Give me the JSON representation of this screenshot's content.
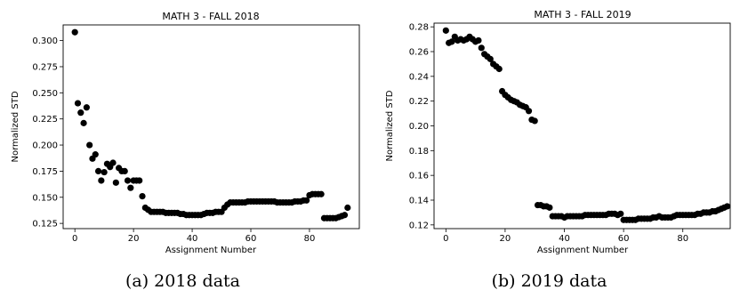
{
  "captions": [
    "(a) 2018 data",
    "(b) 2019 data"
  ],
  "chart_data": [
    {
      "type": "scatter",
      "title": "MATH 3 - FALL 2018",
      "xlabel": "Assignment Number",
      "ylabel": "Normalized STD",
      "xlim": [
        -4,
        97
      ],
      "ylim": [
        0.12,
        0.315
      ],
      "xticks": [
        0,
        20,
        40,
        60,
        80
      ],
      "yticks": [
        0.125,
        0.15,
        0.175,
        0.2,
        0.225,
        0.25,
        0.275,
        0.3
      ],
      "ytick_decimals": 3,
      "grid": false,
      "marker_color": "#000000",
      "points": [
        [
          0,
          0.308
        ],
        [
          1,
          0.24
        ],
        [
          2,
          0.231
        ],
        [
          3,
          0.221
        ],
        [
          4,
          0.236
        ],
        [
          5,
          0.2
        ],
        [
          6,
          0.187
        ],
        [
          7,
          0.191
        ],
        [
          8,
          0.175
        ],
        [
          9,
          0.166
        ],
        [
          10,
          0.174
        ],
        [
          11,
          0.182
        ],
        [
          12,
          0.179
        ],
        [
          13,
          0.183
        ],
        [
          14,
          0.164
        ],
        [
          15,
          0.178
        ],
        [
          16,
          0.175
        ],
        [
          17,
          0.175
        ],
        [
          18,
          0.166
        ],
        [
          19,
          0.159
        ],
        [
          20,
          0.166
        ],
        [
          21,
          0.166
        ],
        [
          22,
          0.166
        ],
        [
          23,
          0.151
        ],
        [
          24,
          0.14
        ],
        [
          25,
          0.138
        ],
        [
          26,
          0.136
        ],
        [
          27,
          0.136
        ],
        [
          28,
          0.136
        ],
        [
          29,
          0.136
        ],
        [
          30,
          0.136
        ],
        [
          31,
          0.135
        ],
        [
          32,
          0.135
        ],
        [
          33,
          0.135
        ],
        [
          34,
          0.135
        ],
        [
          35,
          0.135
        ],
        [
          36,
          0.134
        ],
        [
          37,
          0.134
        ],
        [
          38,
          0.133
        ],
        [
          39,
          0.133
        ],
        [
          40,
          0.133
        ],
        [
          41,
          0.133
        ],
        [
          42,
          0.133
        ],
        [
          43,
          0.133
        ],
        [
          44,
          0.134
        ],
        [
          45,
          0.135
        ],
        [
          46,
          0.135
        ],
        [
          47,
          0.135
        ],
        [
          48,
          0.136
        ],
        [
          49,
          0.136
        ],
        [
          50,
          0.136
        ],
        [
          51,
          0.14
        ],
        [
          52,
          0.143
        ],
        [
          53,
          0.145
        ],
        [
          54,
          0.145
        ],
        [
          55,
          0.145
        ],
        [
          56,
          0.145
        ],
        [
          57,
          0.145
        ],
        [
          58,
          0.145
        ],
        [
          59,
          0.146
        ],
        [
          60,
          0.146
        ],
        [
          61,
          0.146
        ],
        [
          62,
          0.146
        ],
        [
          63,
          0.146
        ],
        [
          64,
          0.146
        ],
        [
          65,
          0.146
        ],
        [
          66,
          0.146
        ],
        [
          67,
          0.146
        ],
        [
          68,
          0.146
        ],
        [
          69,
          0.145
        ],
        [
          70,
          0.145
        ],
        [
          71,
          0.145
        ],
        [
          72,
          0.145
        ],
        [
          73,
          0.145
        ],
        [
          74,
          0.145
        ],
        [
          75,
          0.146
        ],
        [
          76,
          0.146
        ],
        [
          77,
          0.146
        ],
        [
          78,
          0.147
        ],
        [
          79,
          0.147
        ],
        [
          80,
          0.152
        ],
        [
          81,
          0.153
        ],
        [
          82,
          0.153
        ],
        [
          83,
          0.153
        ],
        [
          84,
          0.153
        ],
        [
          85,
          0.13
        ],
        [
          86,
          0.13
        ],
        [
          87,
          0.13
        ],
        [
          88,
          0.13
        ],
        [
          89,
          0.13
        ],
        [
          90,
          0.131
        ],
        [
          91,
          0.132
        ],
        [
          92,
          0.133
        ],
        [
          93,
          0.14
        ]
      ]
    },
    {
      "type": "scatter",
      "title": "MATH 3 - FALL 2019",
      "xlabel": "Assignment Number",
      "ylabel": "Normalized STD",
      "xlim": [
        -4,
        96
      ],
      "ylim": [
        0.117,
        0.283
      ],
      "xticks": [
        0,
        20,
        40,
        60,
        80
      ],
      "yticks": [
        0.12,
        0.14,
        0.16,
        0.18,
        0.2,
        0.22,
        0.24,
        0.26,
        0.28
      ],
      "ytick_decimals": 2,
      "grid": false,
      "marker_color": "#000000",
      "points": [
        [
          0,
          0.277
        ],
        [
          1,
          0.267
        ],
        [
          2,
          0.268
        ],
        [
          3,
          0.272
        ],
        [
          4,
          0.269
        ],
        [
          5,
          0.27
        ],
        [
          6,
          0.269
        ],
        [
          7,
          0.27
        ],
        [
          8,
          0.272
        ],
        [
          9,
          0.27
        ],
        [
          10,
          0.268
        ],
        [
          11,
          0.269
        ],
        [
          12,
          0.263
        ],
        [
          13,
          0.258
        ],
        [
          14,
          0.256
        ],
        [
          15,
          0.254
        ],
        [
          16,
          0.25
        ],
        [
          17,
          0.248
        ],
        [
          18,
          0.246
        ],
        [
          19,
          0.228
        ],
        [
          20,
          0.225
        ],
        [
          21,
          0.223
        ],
        [
          22,
          0.221
        ],
        [
          23,
          0.22
        ],
        [
          24,
          0.219
        ],
        [
          25,
          0.217
        ],
        [
          26,
          0.216
        ],
        [
          27,
          0.215
        ],
        [
          28,
          0.212
        ],
        [
          29,
          0.205
        ],
        [
          30,
          0.204
        ],
        [
          31,
          0.136
        ],
        [
          32,
          0.136
        ],
        [
          33,
          0.135
        ],
        [
          34,
          0.135
        ],
        [
          35,
          0.134
        ],
        [
          36,
          0.127
        ],
        [
          37,
          0.127
        ],
        [
          38,
          0.127
        ],
        [
          39,
          0.127
        ],
        [
          40,
          0.126
        ],
        [
          41,
          0.127
        ],
        [
          42,
          0.127
        ],
        [
          43,
          0.127
        ],
        [
          44,
          0.127
        ],
        [
          45,
          0.127
        ],
        [
          46,
          0.127
        ],
        [
          47,
          0.128
        ],
        [
          48,
          0.128
        ],
        [
          49,
          0.128
        ],
        [
          50,
          0.128
        ],
        [
          51,
          0.128
        ],
        [
          52,
          0.128
        ],
        [
          53,
          0.128
        ],
        [
          54,
          0.128
        ],
        [
          55,
          0.129
        ],
        [
          56,
          0.129
        ],
        [
          57,
          0.129
        ],
        [
          58,
          0.128
        ],
        [
          59,
          0.129
        ],
        [
          60,
          0.124
        ],
        [
          61,
          0.124
        ],
        [
          62,
          0.124
        ],
        [
          63,
          0.124
        ],
        [
          64,
          0.124
        ],
        [
          65,
          0.125
        ],
        [
          66,
          0.125
        ],
        [
          67,
          0.125
        ],
        [
          68,
          0.125
        ],
        [
          69,
          0.125
        ],
        [
          70,
          0.126
        ],
        [
          71,
          0.126
        ],
        [
          72,
          0.127
        ],
        [
          73,
          0.126
        ],
        [
          74,
          0.126
        ],
        [
          75,
          0.126
        ],
        [
          76,
          0.126
        ],
        [
          77,
          0.127
        ],
        [
          78,
          0.128
        ],
        [
          79,
          0.128
        ],
        [
          80,
          0.128
        ],
        [
          81,
          0.128
        ],
        [
          82,
          0.128
        ],
        [
          83,
          0.128
        ],
        [
          84,
          0.128
        ],
        [
          85,
          0.129
        ],
        [
          86,
          0.129
        ],
        [
          87,
          0.13
        ],
        [
          88,
          0.13
        ],
        [
          89,
          0.13
        ],
        [
          90,
          0.131
        ],
        [
          91,
          0.131
        ],
        [
          92,
          0.132
        ],
        [
          93,
          0.133
        ],
        [
          94,
          0.134
        ],
        [
          95,
          0.135
        ]
      ]
    }
  ]
}
